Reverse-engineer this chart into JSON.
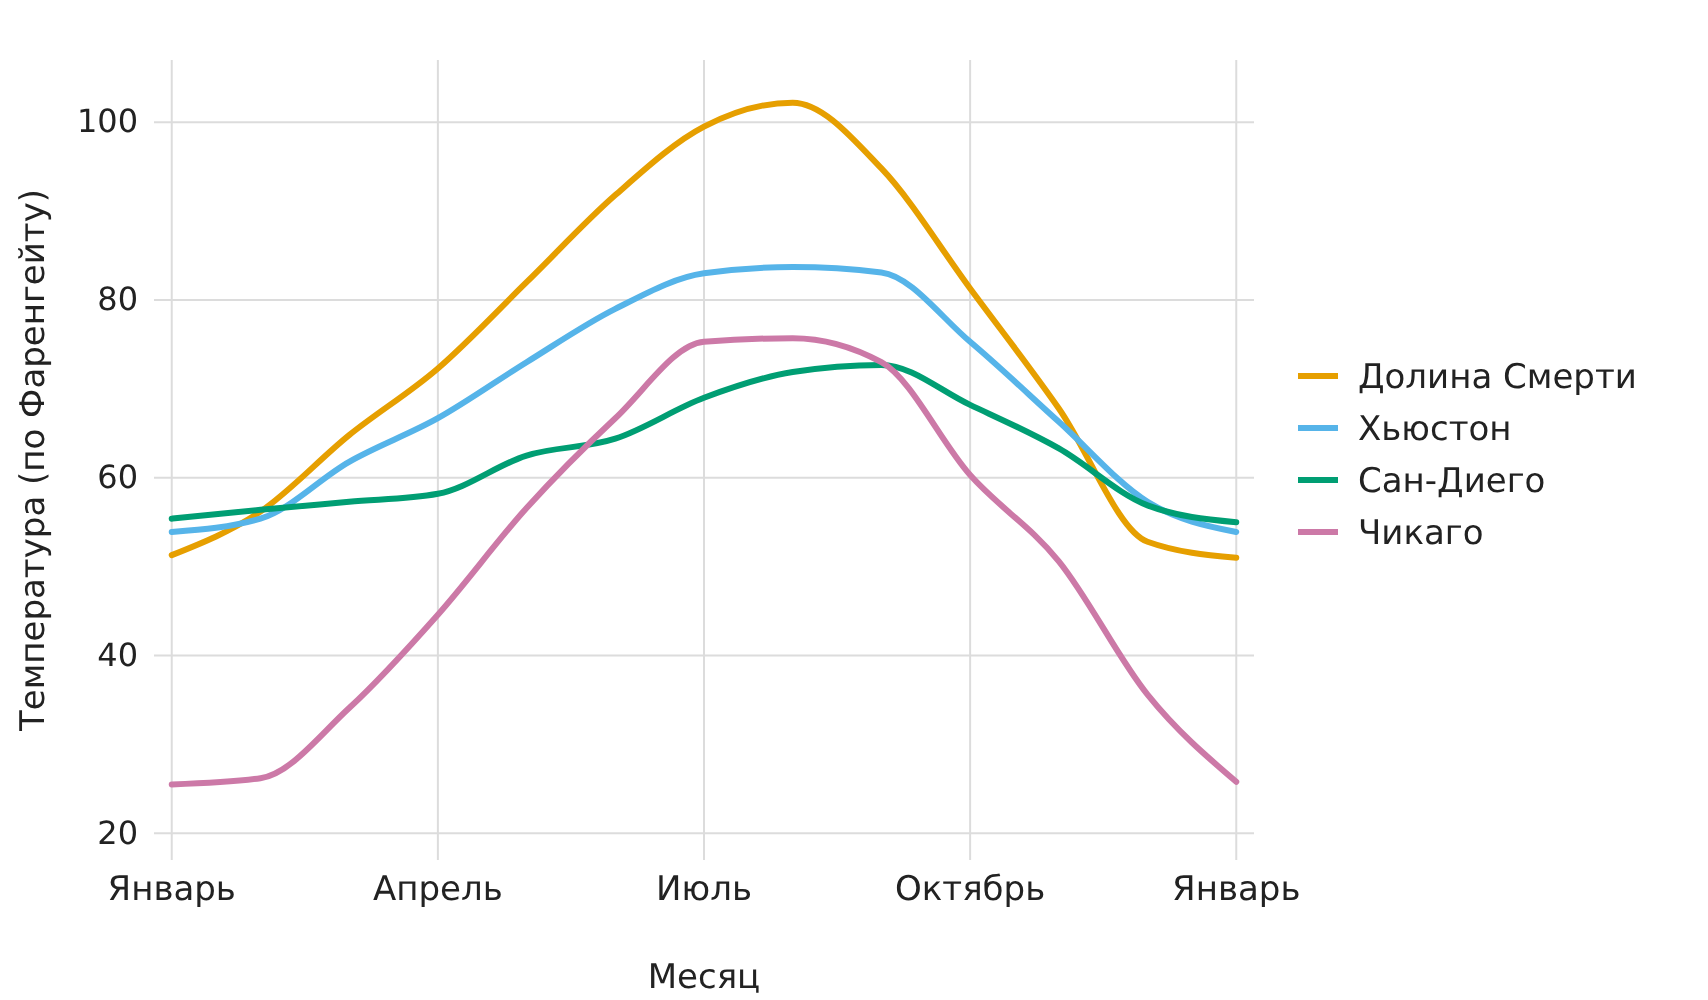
{
  "chart_data": {
    "type": "line",
    "xlabel": "Месяц",
    "ylabel": "Температура (по Фаренгейту)",
    "categories": [
      "Январь",
      null,
      null,
      "Апрель",
      null,
      null,
      "Июль",
      null,
      null,
      "Октябрь",
      null,
      null,
      "Январь"
    ],
    "ylim": [
      17,
      107
    ],
    "yticks": [
      20,
      40,
      60,
      80,
      100
    ],
    "grid": true,
    "legend": "right",
    "line_style": "solid",
    "marker": "none",
    "series": [
      {
        "name": "Долина Смерти",
        "color": "#e69f00",
        "values": [
          51.3,
          56.2,
          64.8,
          72.3,
          82,
          91.8,
          99.5,
          102.2,
          94.8,
          81.3,
          67.8,
          52.8,
          51
        ]
      },
      {
        "name": "Хьюстон",
        "color": "#56b4e9",
        "values": [
          53.9,
          55.4,
          61.8,
          66.7,
          73,
          79,
          83,
          83.7,
          83.1,
          75.3,
          66.3,
          57.3,
          53.9
        ]
      },
      {
        "name": "Сан-Диего",
        "color": "#009e73",
        "values": [
          55.4,
          56.4,
          57.3,
          58.2,
          62.5,
          64.4,
          69,
          71.9,
          72.7,
          68.2,
          63.3,
          56.9,
          55
        ]
      },
      {
        "name": "Чикаго",
        "color": "#cc79a7",
        "values": [
          25.5,
          26.2,
          34.1,
          44.6,
          56.6,
          66.7,
          75.3,
          75.7,
          73,
          60.3,
          50.6,
          35.6,
          25.8
        ]
      }
    ]
  }
}
